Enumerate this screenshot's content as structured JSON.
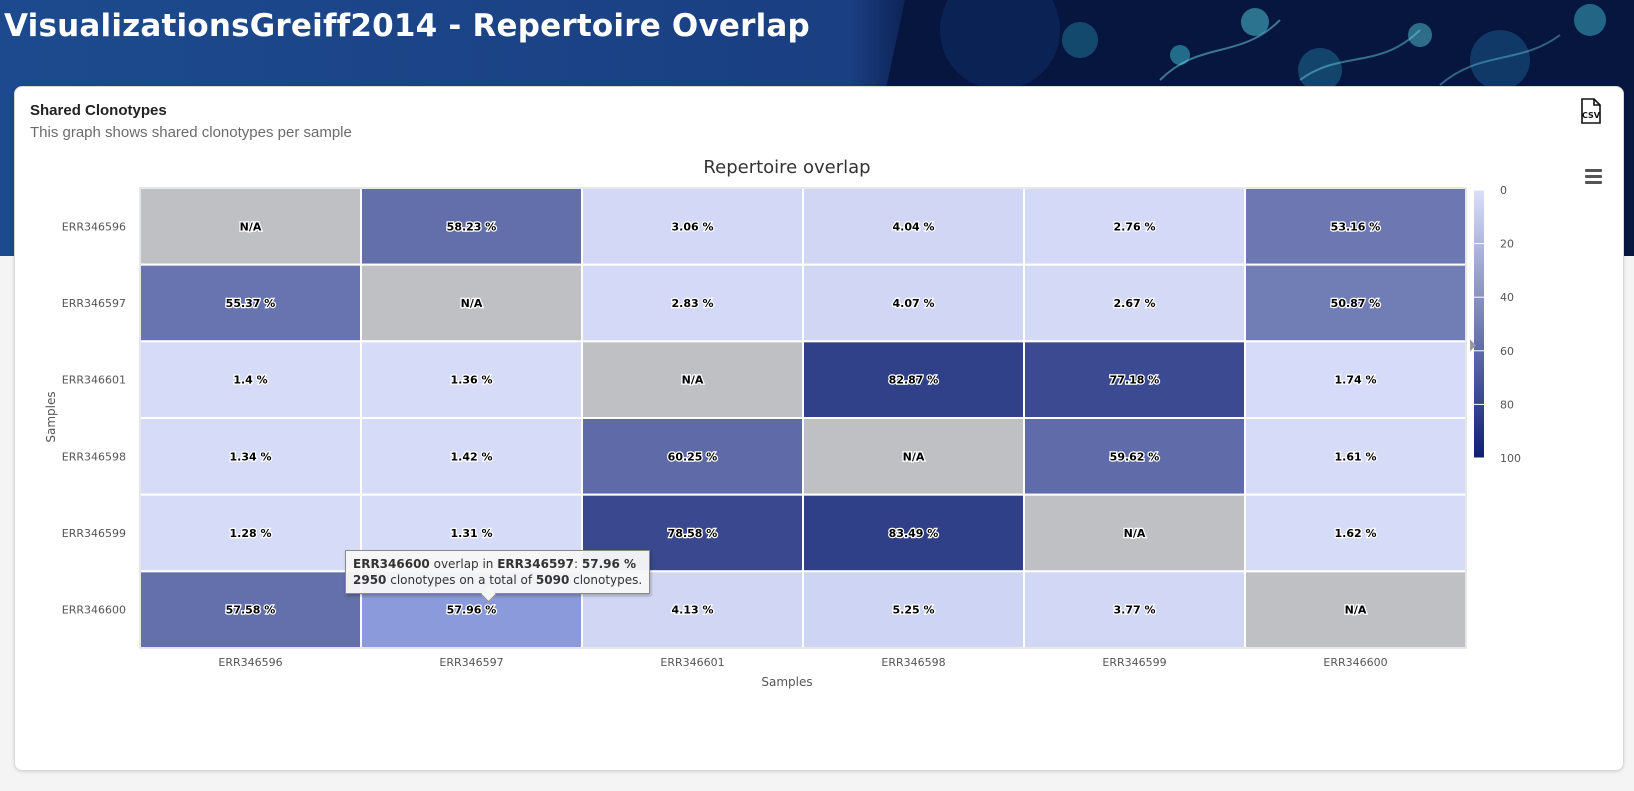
{
  "header": {
    "title": "VisualizationsGreiff2014 - Repertoire Overlap"
  },
  "card": {
    "title": "Shared Clonotypes",
    "subtitle": "This graph shows shared clonotypes per sample",
    "csv_icon": "csv-file-icon",
    "menu_icon": "hamburger-menu-icon"
  },
  "chart_data": {
    "type": "heatmap",
    "title": "Repertoire overlap",
    "xlabel": "Samples",
    "ylabel": "Samples",
    "x_categories": [
      "ERR346596",
      "ERR346597",
      "ERR346601",
      "ERR346598",
      "ERR346599",
      "ERR346600"
    ],
    "y_categories": [
      "ERR346596",
      "ERR346597",
      "ERR346601",
      "ERR346598",
      "ERR346599",
      "ERR346600"
    ],
    "values": [
      [
        null,
        58.23,
        3.06,
        4.04,
        2.76,
        53.16
      ],
      [
        55.37,
        null,
        2.83,
        4.07,
        2.67,
        50.87
      ],
      [
        1.4,
        1.36,
        null,
        82.87,
        77.18,
        1.74
      ],
      [
        1.34,
        1.42,
        60.25,
        null,
        59.62,
        1.61
      ],
      [
        1.28,
        1.31,
        78.58,
        83.49,
        null,
        1.62
      ],
      [
        57.58,
        57.96,
        4.13,
        5.25,
        3.77,
        null
      ]
    ],
    "value_suffix": " %",
    "null_label": "N/A",
    "color_axis": {
      "min": 0,
      "max": 100,
      "ticks": [
        0,
        20,
        40,
        60,
        80,
        100
      ],
      "min_color": "#d9defa",
      "max_color": "#0d1f72"
    },
    "null_color": "#bfc0c4",
    "hover_color": "#8b9adb",
    "hover_cell": {
      "row": 5,
      "col": 1
    }
  },
  "tooltip": {
    "sample": "ERR346600",
    "overlap_in": " overlap in ",
    "target": "ERR346597",
    "separator": ": ",
    "percent": "57.96 %",
    "shared": "2950",
    "text_mid": " clonotypes on a total of ",
    "total": "5090",
    "text_end": " clonotypes."
  }
}
